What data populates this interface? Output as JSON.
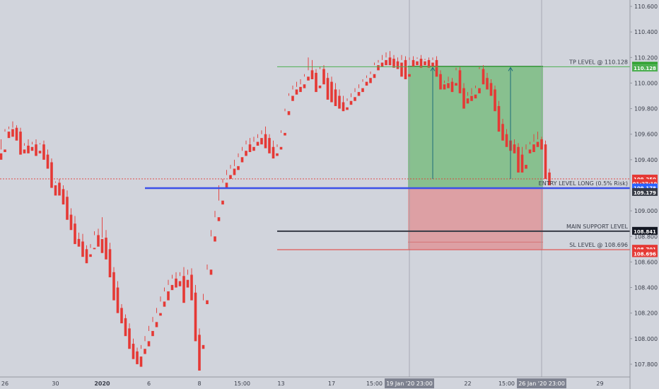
{
  "chart_data": {
    "type": "candlestick",
    "title": "",
    "ylim": [
      107.7,
      110.65
    ],
    "y_ticks": [
      "110.600",
      "110.400",
      "110.200",
      "110.000",
      "109.800",
      "109.600",
      "109.400",
      "109.000",
      "108.800",
      "108.600",
      "108.400",
      "108.200",
      "108.000",
      "107.800"
    ],
    "x_ticks": [
      {
        "label": "26",
        "bar": 1
      },
      {
        "label": "30",
        "bar": 14
      },
      {
        "label": "2020",
        "bar": 26
      },
      {
        "label": "6",
        "bar": 38
      },
      {
        "label": "8",
        "bar": 51
      },
      {
        "label": "15:00",
        "bar": 62
      },
      {
        "label": "13",
        "bar": 72
      },
      {
        "label": "17",
        "bar": 85
      },
      {
        "label": "15:00",
        "bar": 96
      },
      {
        "label": "22",
        "bar": 120
      },
      {
        "label": "15:00",
        "bar": 130
      },
      {
        "label": "29",
        "bar": 154
      }
    ],
    "x_highlight": [
      {
        "label": "19 Jan '20  23:00",
        "bar": 105
      },
      {
        "label": "26 Jan '20  23:00",
        "bar": 139
      }
    ],
    "candles": [
      [
        109.45,
        109.56,
        109.48,
        109.4
      ],
      [
        109.48,
        109.64,
        109.62,
        109.46
      ],
      [
        109.62,
        109.66,
        109.64,
        109.57
      ],
      [
        109.64,
        109.7,
        109.65,
        109.58
      ],
      [
        109.65,
        109.67,
        109.62,
        109.55
      ],
      [
        109.62,
        109.65,
        109.48,
        109.44
      ],
      [
        109.48,
        109.53,
        109.51,
        109.45
      ],
      [
        109.51,
        109.56,
        109.5,
        109.45
      ],
      [
        109.5,
        109.54,
        109.52,
        109.47
      ],
      [
        109.52,
        109.56,
        109.47,
        109.43
      ],
      [
        109.47,
        109.53,
        109.52,
        109.45
      ],
      [
        109.52,
        109.55,
        109.44,
        109.4
      ],
      [
        109.44,
        109.48,
        109.38,
        109.33
      ],
      [
        109.38,
        109.41,
        109.2,
        109.18
      ],
      [
        109.2,
        109.23,
        109.22,
        109.12
      ],
      [
        109.22,
        109.25,
        109.17,
        109.12
      ],
      [
        109.17,
        109.2,
        109.11,
        109.05
      ],
      [
        109.11,
        109.16,
        108.97,
        108.93
      ],
      [
        108.97,
        109.02,
        108.9,
        108.85
      ],
      [
        108.9,
        108.96,
        108.78,
        108.74
      ],
      [
        108.78,
        108.83,
        108.76,
        108.72
      ],
      [
        108.76,
        108.82,
        108.7,
        108.64
      ],
      [
        108.7,
        108.73,
        108.66,
        108.59
      ],
      [
        108.66,
        108.74,
        108.71,
        108.64
      ],
      [
        108.71,
        108.84,
        108.81,
        108.7
      ],
      [
        108.81,
        108.86,
        108.78,
        108.72
      ],
      [
        108.78,
        108.95,
        108.79,
        108.67
      ],
      [
        108.79,
        108.85,
        108.7,
        108.62
      ],
      [
        108.7,
        108.75,
        108.52,
        108.48
      ],
      [
        108.52,
        108.56,
        108.4,
        108.3
      ],
      [
        108.4,
        108.45,
        108.24,
        108.2
      ],
      [
        108.24,
        108.27,
        108.16,
        108.12
      ],
      [
        108.16,
        108.19,
        108.08,
        108.02
      ],
      [
        108.08,
        108.12,
        107.96,
        107.92
      ],
      [
        107.96,
        108.0,
        107.9,
        107.84
      ],
      [
        107.9,
        107.93,
        107.86,
        107.8
      ],
      [
        107.86,
        107.95,
        107.92,
        107.78
      ],
      [
        107.92,
        108.02,
        107.98,
        107.88
      ],
      [
        107.98,
        108.1,
        108.06,
        107.94
      ],
      [
        108.06,
        108.17,
        108.13,
        108.02
      ],
      [
        108.13,
        108.24,
        108.2,
        108.09
      ],
      [
        108.2,
        108.33,
        108.29,
        108.18
      ],
      [
        108.29,
        108.4,
        108.37,
        108.25
      ],
      [
        108.37,
        108.46,
        108.42,
        108.3
      ],
      [
        108.42,
        108.5,
        108.47,
        108.38
      ],
      [
        108.47,
        108.52,
        108.45,
        108.4
      ],
      [
        108.45,
        108.52,
        108.49,
        108.41
      ],
      [
        108.49,
        108.56,
        108.46,
        108.28
      ],
      [
        108.46,
        108.54,
        108.5,
        108.4
      ],
      [
        108.5,
        108.55,
        108.36,
        108.3
      ],
      [
        108.36,
        108.42,
        108.03,
        107.98
      ],
      [
        108.03,
        108.08,
        107.77,
        107.75
      ],
      [
        107.95,
        108.35,
        108.3,
        107.92
      ],
      [
        108.3,
        108.58,
        108.54,
        108.27
      ],
      [
        108.54,
        108.85,
        108.8,
        108.5
      ],
      [
        108.8,
        109.0,
        108.95,
        108.76
      ],
      [
        108.95,
        109.2,
        109.08,
        108.92
      ],
      [
        109.08,
        109.25,
        109.22,
        109.05
      ],
      [
        109.22,
        109.32,
        109.28,
        109.18
      ],
      [
        109.28,
        109.36,
        109.33,
        109.25
      ],
      [
        109.33,
        109.4,
        109.35,
        109.28
      ],
      [
        109.35,
        109.45,
        109.42,
        109.32
      ],
      [
        109.42,
        109.5,
        109.47,
        109.38
      ],
      [
        109.47,
        109.55,
        109.52,
        109.43
      ],
      [
        109.52,
        109.57,
        109.5,
        109.46
      ],
      [
        109.5,
        109.58,
        109.54,
        109.47
      ],
      [
        109.54,
        109.6,
        109.57,
        109.51
      ],
      [
        109.57,
        109.63,
        109.6,
        109.52
      ],
      [
        109.6,
        109.66,
        109.57,
        109.49
      ],
      [
        109.57,
        109.6,
        109.5,
        109.45
      ],
      [
        109.5,
        109.55,
        109.45,
        109.41
      ],
      [
        109.45,
        109.52,
        109.5,
        109.43
      ],
      [
        109.5,
        109.63,
        109.61,
        109.48
      ],
      [
        109.61,
        109.8,
        109.78,
        109.59
      ],
      [
        109.78,
        109.92,
        109.9,
        109.75
      ],
      [
        109.9,
        109.98,
        109.95,
        109.86
      ],
      [
        109.95,
        110.01,
        109.97,
        109.91
      ],
      [
        109.97,
        110.03,
        109.99,
        109.93
      ],
      [
        109.99,
        110.07,
        110.05,
        109.96
      ],
      [
        110.05,
        110.2,
        110.1,
        110.02
      ],
      [
        110.1,
        110.18,
        110.08,
        110.03
      ],
      [
        110.08,
        110.11,
        109.98,
        109.93
      ],
      [
        109.98,
        110.13,
        110.11,
        109.96
      ],
      [
        110.11,
        110.14,
        110.04,
        109.99
      ],
      [
        110.04,
        110.08,
        110.01,
        109.87
      ],
      [
        110.01,
        110.05,
        109.95,
        109.85
      ],
      [
        109.95,
        110.0,
        109.9,
        109.82
      ],
      [
        109.9,
        109.95,
        109.85,
        109.8
      ],
      [
        109.85,
        109.9,
        109.81,
        109.78
      ],
      [
        109.81,
        109.88,
        109.86,
        109.79
      ],
      [
        109.86,
        109.92,
        109.89,
        109.83
      ],
      [
        109.89,
        109.96,
        109.93,
        109.86
      ],
      [
        109.93,
        109.99,
        109.96,
        109.9
      ],
      [
        109.96,
        110.03,
        110.01,
        109.93
      ],
      [
        110.01,
        110.06,
        110.04,
        109.98
      ],
      [
        110.04,
        110.09,
        110.07,
        110.0
      ],
      [
        110.07,
        110.16,
        110.14,
        110.04
      ],
      [
        110.14,
        110.18,
        110.16,
        110.1
      ],
      [
        110.16,
        110.22,
        110.18,
        110.13
      ],
      [
        110.18,
        110.24,
        110.2,
        110.14
      ],
      [
        110.2,
        110.25,
        110.19,
        110.14
      ],
      [
        110.19,
        110.22,
        110.17,
        110.12
      ],
      [
        110.17,
        110.2,
        110.16,
        110.11
      ],
      [
        110.16,
        110.22,
        110.18,
        110.05
      ],
      [
        110.18,
        110.21,
        110.07,
        110.03
      ],
      [
        110.07,
        110.2,
        110.18,
        110.05
      ],
      [
        110.18,
        110.21,
        110.17,
        110.13
      ],
      [
        110.17,
        110.2,
        110.19,
        110.14
      ],
      [
        110.19,
        110.22,
        110.17,
        110.12
      ],
      [
        110.17,
        110.19,
        110.18,
        110.14
      ],
      [
        110.18,
        110.2,
        110.16,
        110.12
      ],
      [
        110.16,
        110.2,
        110.18,
        110.13
      ],
      [
        110.18,
        110.21,
        110.07,
        110.05
      ],
      [
        110.07,
        110.1,
        109.99,
        109.95
      ],
      [
        109.99,
        110.02,
        110.0,
        109.95
      ],
      [
        110.0,
        110.05,
        110.01,
        109.96
      ],
      [
        110.01,
        110.04,
        110.0,
        109.93
      ],
      [
        110.0,
        110.12,
        110.1,
        109.98
      ],
      [
        110.1,
        110.13,
        109.96,
        109.92
      ],
      [
        109.96,
        110.0,
        109.88,
        109.8
      ],
      [
        109.88,
        109.93,
        109.9,
        109.84
      ],
      [
        109.9,
        109.96,
        109.91,
        109.86
      ],
      [
        109.91,
        109.98,
        109.96,
        109.88
      ],
      [
        109.96,
        110.13,
        110.11,
        109.92
      ],
      [
        110.11,
        110.14,
        110.04,
        109.99
      ],
      [
        110.04,
        110.08,
        110.0,
        109.95
      ],
      [
        110.0,
        110.03,
        109.95,
        109.9
      ],
      [
        109.95,
        109.98,
        109.82,
        109.78
      ],
      [
        109.82,
        109.86,
        109.68,
        109.62
      ],
      [
        109.68,
        109.72,
        109.6,
        109.55
      ],
      [
        109.6,
        109.64,
        109.55,
        109.5
      ],
      [
        109.55,
        109.59,
        109.52,
        109.47
      ],
      [
        109.52,
        109.56,
        109.5,
        109.45
      ],
      [
        109.5,
        109.53,
        109.44,
        109.3
      ],
      [
        109.44,
        109.5,
        109.36,
        109.3
      ],
      [
        109.36,
        109.52,
        109.48,
        109.33
      ],
      [
        109.48,
        109.54,
        109.52,
        109.45
      ],
      [
        109.52,
        109.6,
        109.54,
        109.46
      ],
      [
        109.54,
        109.62,
        109.56,
        109.5
      ],
      [
        109.56,
        109.58,
        109.52,
        109.48
      ],
      [
        109.52,
        109.55,
        109.3,
        109.25
      ],
      [
        109.3,
        109.33,
        109.24,
        109.2
      ]
    ],
    "colors": {
      "up": "#363a45",
      "down": "#e53935",
      "background": "#d1d4dc"
    },
    "position": {
      "entry": 109.178,
      "take_profit": 110.133,
      "stop_loss": 108.701,
      "start_bar": 105,
      "end_bar": 139,
      "profit_color": "#4caf50",
      "loss_color": "#ef5350"
    },
    "lines": [
      {
        "label": "TP LEVEL @ 110.128",
        "price": 110.128,
        "color": "#4caf50",
        "start_bar": 71
      },
      {
        "label": "ENTRY LEVEL LONG (0.5% Risk)",
        "price": 109.178,
        "color": "#3b50e8",
        "start_bar": 37
      },
      {
        "label": "MAIN SUPPORT LEVEL",
        "price": 108.841,
        "color": "#363a45",
        "start_bar": 71
      },
      {
        "label": "SL LEVEL @ 108.696",
        "price": 108.696,
        "color": "#e53935",
        "start_bar": 71
      }
    ],
    "current_price_line": {
      "price": 109.25,
      "color": "#e53935"
    },
    "arrows": [
      {
        "bar": 111,
        "from": 109.25,
        "to": 110.133
      },
      {
        "bar": 131,
        "from": 109.25,
        "to": 110.133
      }
    ],
    "price_labels": [
      {
        "text": "110.133",
        "price": 110.133,
        "bg": "#2ca02c",
        "fg": "#ffffff"
      },
      {
        "text": "110.128",
        "price": 110.118,
        "bg": "#4caf50",
        "fg": "#ffffff"
      },
      {
        "text": "109.250",
        "price": 109.25,
        "bg": "#e53935",
        "fg": "#ffffff"
      },
      {
        "text": "01:27:19",
        "price": 109.215,
        "bg": "#e53935",
        "fg": "#ffffff"
      },
      {
        "text": "109.178",
        "price": 109.18,
        "bg": "#2962ff",
        "fg": "#ffffff"
      },
      {
        "text": "109.179",
        "price": 109.145,
        "bg": "#363a45",
        "fg": "#ffffff"
      },
      {
        "text": "108.841",
        "price": 108.841,
        "bg": "#131722",
        "fg": "#ffffff"
      },
      {
        "text": "108.701",
        "price": 108.701,
        "bg": "#e53935",
        "fg": "#ffffff"
      },
      {
        "text": "108.696",
        "price": 108.666,
        "bg": "#e53935",
        "fg": "#ffffff"
      }
    ]
  }
}
